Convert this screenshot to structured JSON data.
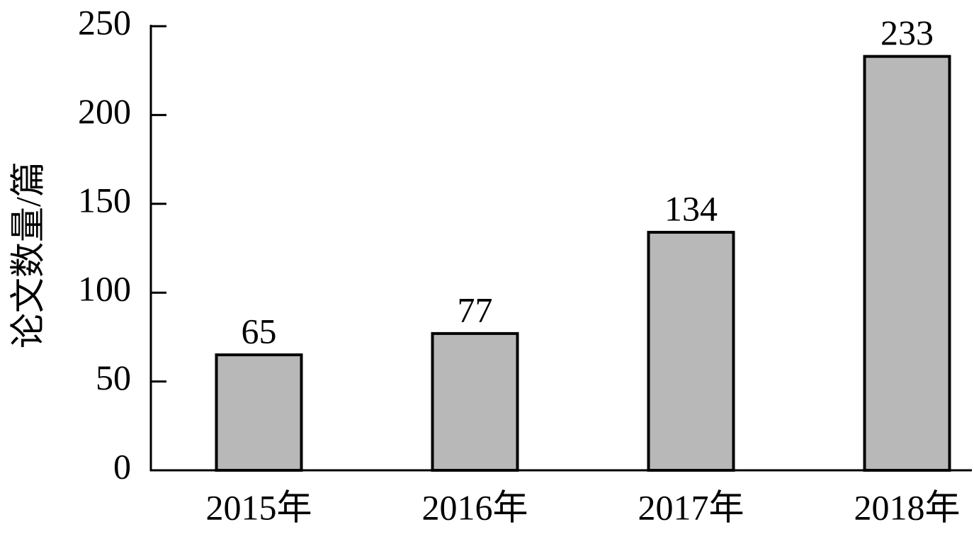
{
  "chart_data": {
    "type": "bar",
    "y_label": "论文数量/篇",
    "categories": [
      "2015年",
      "2016年",
      "2017年",
      "2018年"
    ],
    "values": [
      65,
      77,
      134,
      233
    ],
    "color": "#b8b8b8",
    "ylim": [
      0,
      250
    ],
    "yticks": [
      0,
      50,
      100,
      150,
      200,
      250
    ],
    "grid": false,
    "data_labels": true
  }
}
